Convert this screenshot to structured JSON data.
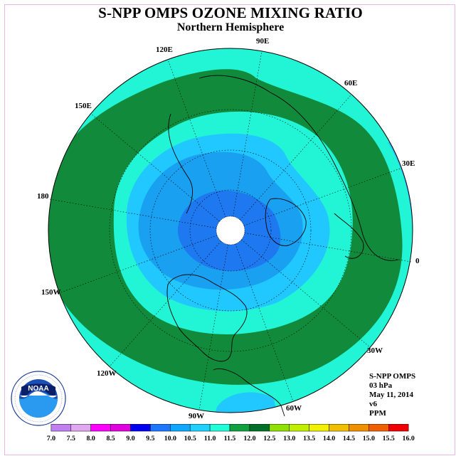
{
  "title": "S-NPP OMPS OZONE MIXING RATIO",
  "subtitle": "Northern Hemisphere",
  "longitude_labels": [
    "90E",
    "60E",
    "30E",
    "0",
    "30W",
    "60W",
    "90W",
    "120W",
    "150W",
    "180",
    "150E",
    "120E"
  ],
  "info": {
    "instrument": "S-NPP OMPS",
    "level": "03 hPa",
    "date": "May 11, 2014",
    "version": "v6",
    "units": "PPM"
  },
  "colorbar": {
    "labels": [
      "7.0",
      "7.5",
      "8.0",
      "8.5",
      "9.0",
      "9.5",
      "10.0",
      "10.5",
      "11.0",
      "11.5",
      "12.0",
      "12.5",
      "13.0",
      "13.5",
      "14.0",
      "14.5",
      "15.0",
      "15.5",
      "16.0"
    ],
    "colors": [
      "#c080f0",
      "#e0a8f0",
      "#ff00ff",
      "#e000e0",
      "#0000f0",
      "#1e78ff",
      "#10a8ff",
      "#20d0ff",
      "#20ffd8",
      "#10a040",
      "#007028",
      "#90e000",
      "#c0f000",
      "#f0f000",
      "#f0c000",
      "#f09000",
      "#f06000",
      "#f00000",
      "#a06040"
    ]
  },
  "logo": {
    "text": "NOAA",
    "ring_text": "NATIONAL OCEANIC AND ATMOSPHERIC ADMINISTRATION · U.S. DEPARTMENT OF COMMERCE"
  },
  "colors": {
    "band_11_0": "#22f5d5",
    "band_11_5": "#118a3c",
    "band_10_5": "#20c8ff",
    "band_10_0": "#1aa0f0",
    "band_9_5": "#1e78f0",
    "frame": "#e8b8e8"
  }
}
